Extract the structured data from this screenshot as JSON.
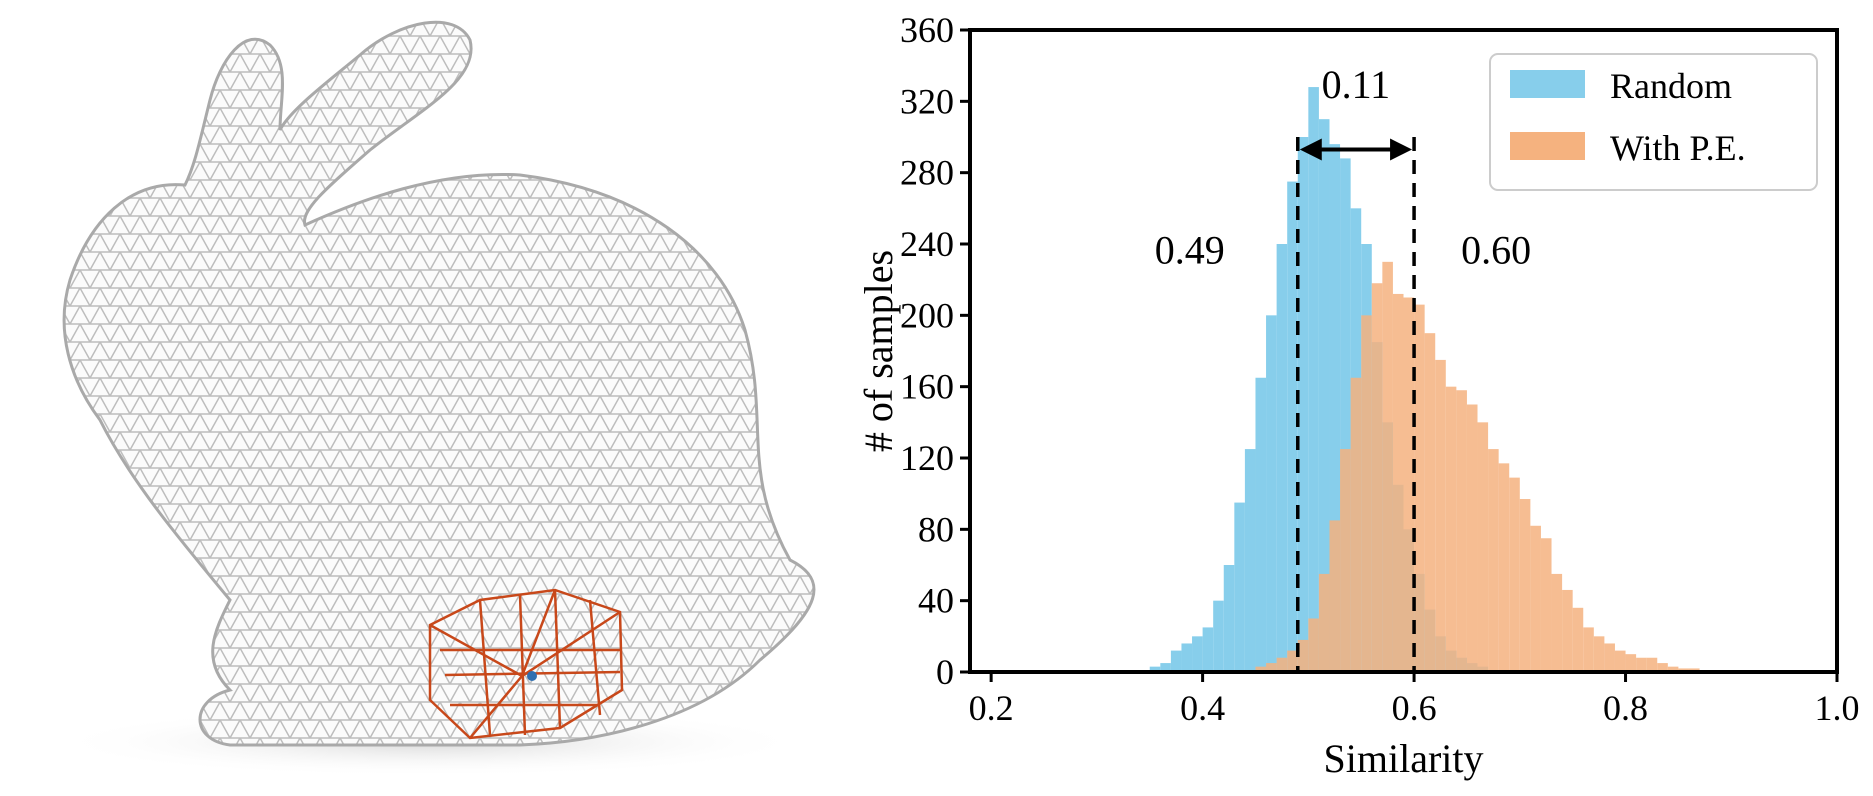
{
  "figure": {
    "left_panel": "bunny-mesh",
    "colors": {
      "mesh": "#bdbdbd",
      "patch": "#c8481a",
      "center_vertex": "#2f6fb0",
      "random": "#87ceeb",
      "pe": "#f5b27f",
      "overlap": "#c9ab8a"
    }
  },
  "chart_data": {
    "type": "histogram",
    "xlabel": "Similarity",
    "ylabel": "# of samples",
    "xlim": [
      0.18,
      1.0
    ],
    "ylim": [
      0,
      360
    ],
    "xticks": [
      0.2,
      0.4,
      0.6,
      0.8,
      1.0
    ],
    "xtick_labels": [
      "0.2",
      "0.4",
      "0.6",
      "0.8",
      "1.0"
    ],
    "yticks": [
      0,
      40,
      80,
      120,
      160,
      200,
      240,
      280,
      320,
      360
    ],
    "ytick_labels": [
      "0",
      "40",
      "80",
      "120",
      "160",
      "200",
      "240",
      "280",
      "320",
      "360"
    ],
    "grid": false,
    "legend_position": "top-right",
    "bin_width": 0.01,
    "series": [
      {
        "name": "Random",
        "color": "#87ceeb",
        "bin_start": 0.35,
        "counts": [
          3,
          5,
          12,
          16,
          20,
          25,
          40,
          60,
          95,
          125,
          165,
          200,
          240,
          275,
          300,
          328,
          310,
          296,
          288,
          260,
          240,
          185,
          140,
          105,
          80,
          55,
          35,
          20,
          12,
          8,
          5,
          3
        ]
      },
      {
        "name": "With P.E.",
        "color": "#f5b27f",
        "bin_start": 0.45,
        "counts": [
          3,
          5,
          8,
          12,
          18,
          30,
          55,
          85,
          125,
          165,
          200,
          218,
          230,
          212,
          210,
          206,
          190,
          175,
          160,
          158,
          150,
          140,
          125,
          117,
          109,
          97,
          82,
          75,
          55,
          46,
          36,
          25,
          20,
          16,
          12,
          10,
          8,
          8,
          5,
          3,
          2,
          2,
          1,
          1
        ]
      }
    ],
    "annotations": {
      "mean_random": {
        "value": 0.49,
        "label": "0.49"
      },
      "mean_pe": {
        "value": 0.6,
        "label": "0.60"
      },
      "gap": {
        "label": "0.11"
      }
    }
  }
}
